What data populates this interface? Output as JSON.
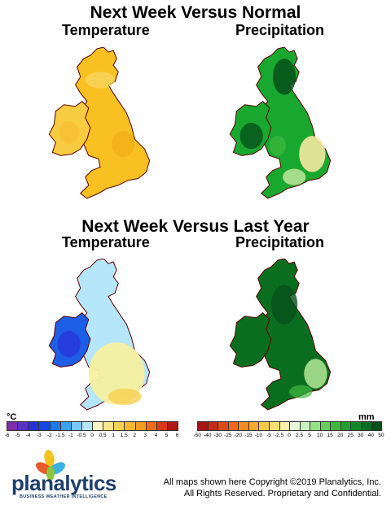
{
  "top_section": {
    "title": "Next Week Versus Normal",
    "left_label": "Temperature",
    "right_label": "Precipitation"
  },
  "bottom_section": {
    "title": "Next Week Versus Last Year",
    "left_label": "Temperature",
    "right_label": "Precipitation"
  },
  "temperature_legend": {
    "unit": "°C",
    "ticks": [
      "-6",
      "-5",
      "-4",
      "-3",
      "-2",
      "-1.5",
      "-1",
      "-0.5",
      "0",
      "0.5",
      "1",
      "1.5",
      "2",
      "3",
      "4",
      "5",
      "6"
    ],
    "colors": [
      "#7b2fa8",
      "#5a2fc8",
      "#2a2fd8",
      "#1446e0",
      "#1e78e8",
      "#3aa0f0",
      "#78c8f5",
      "#b6e6fa",
      "#f6f6c4",
      "#f8e88a",
      "#f8d050",
      "#f8b830",
      "#f49a20",
      "#ec6a1a",
      "#d83a18",
      "#b01a14"
    ]
  },
  "precipitation_legend": {
    "unit": "mm",
    "ticks": [
      "-50",
      "-40",
      "-30",
      "-25",
      "-20",
      "-15",
      "-10",
      "-5",
      "-2.5",
      "0",
      "2.5",
      "5",
      "10",
      "15",
      "20",
      "25",
      "30",
      "40",
      "50"
    ],
    "colors": [
      "#a81414",
      "#c42a14",
      "#dc4a16",
      "#ec6a1a",
      "#f48a20",
      "#f8a830",
      "#f8c848",
      "#f8e070",
      "#f8f0a8",
      "#e8f8d8",
      "#c8f0c0",
      "#98e088",
      "#68cc60",
      "#40b840",
      "#20a030",
      "#108828",
      "#0a6e20",
      "#06501a"
    ]
  },
  "footer": {
    "logo_text": "planalytics",
    "logo_tagline": "BUSINESS WEATHER INTELLIGENCE",
    "copyright_line1": "All maps shown here Copyright ©2019 Planalytics, Inc.",
    "copyright_line2": "All Rights Reserved. Proprietary and Confidential."
  },
  "map_colors": {
    "temp_normal_main": "#f8c020",
    "temp_normal_ireland": "#f8cc40",
    "precip_normal_main": "#18a830",
    "precip_normal_dark": "#06501a",
    "precip_normal_dry": "#f4e8a0",
    "temp_lastyear_north": "#b6e6fa",
    "temp_lastyear_south": "#f6f0a0",
    "temp_lastyear_ireland": "#1e5ee6",
    "precip_lastyear_main": "#0a6e20",
    "precip_lastyear_light": "#a8e090"
  }
}
